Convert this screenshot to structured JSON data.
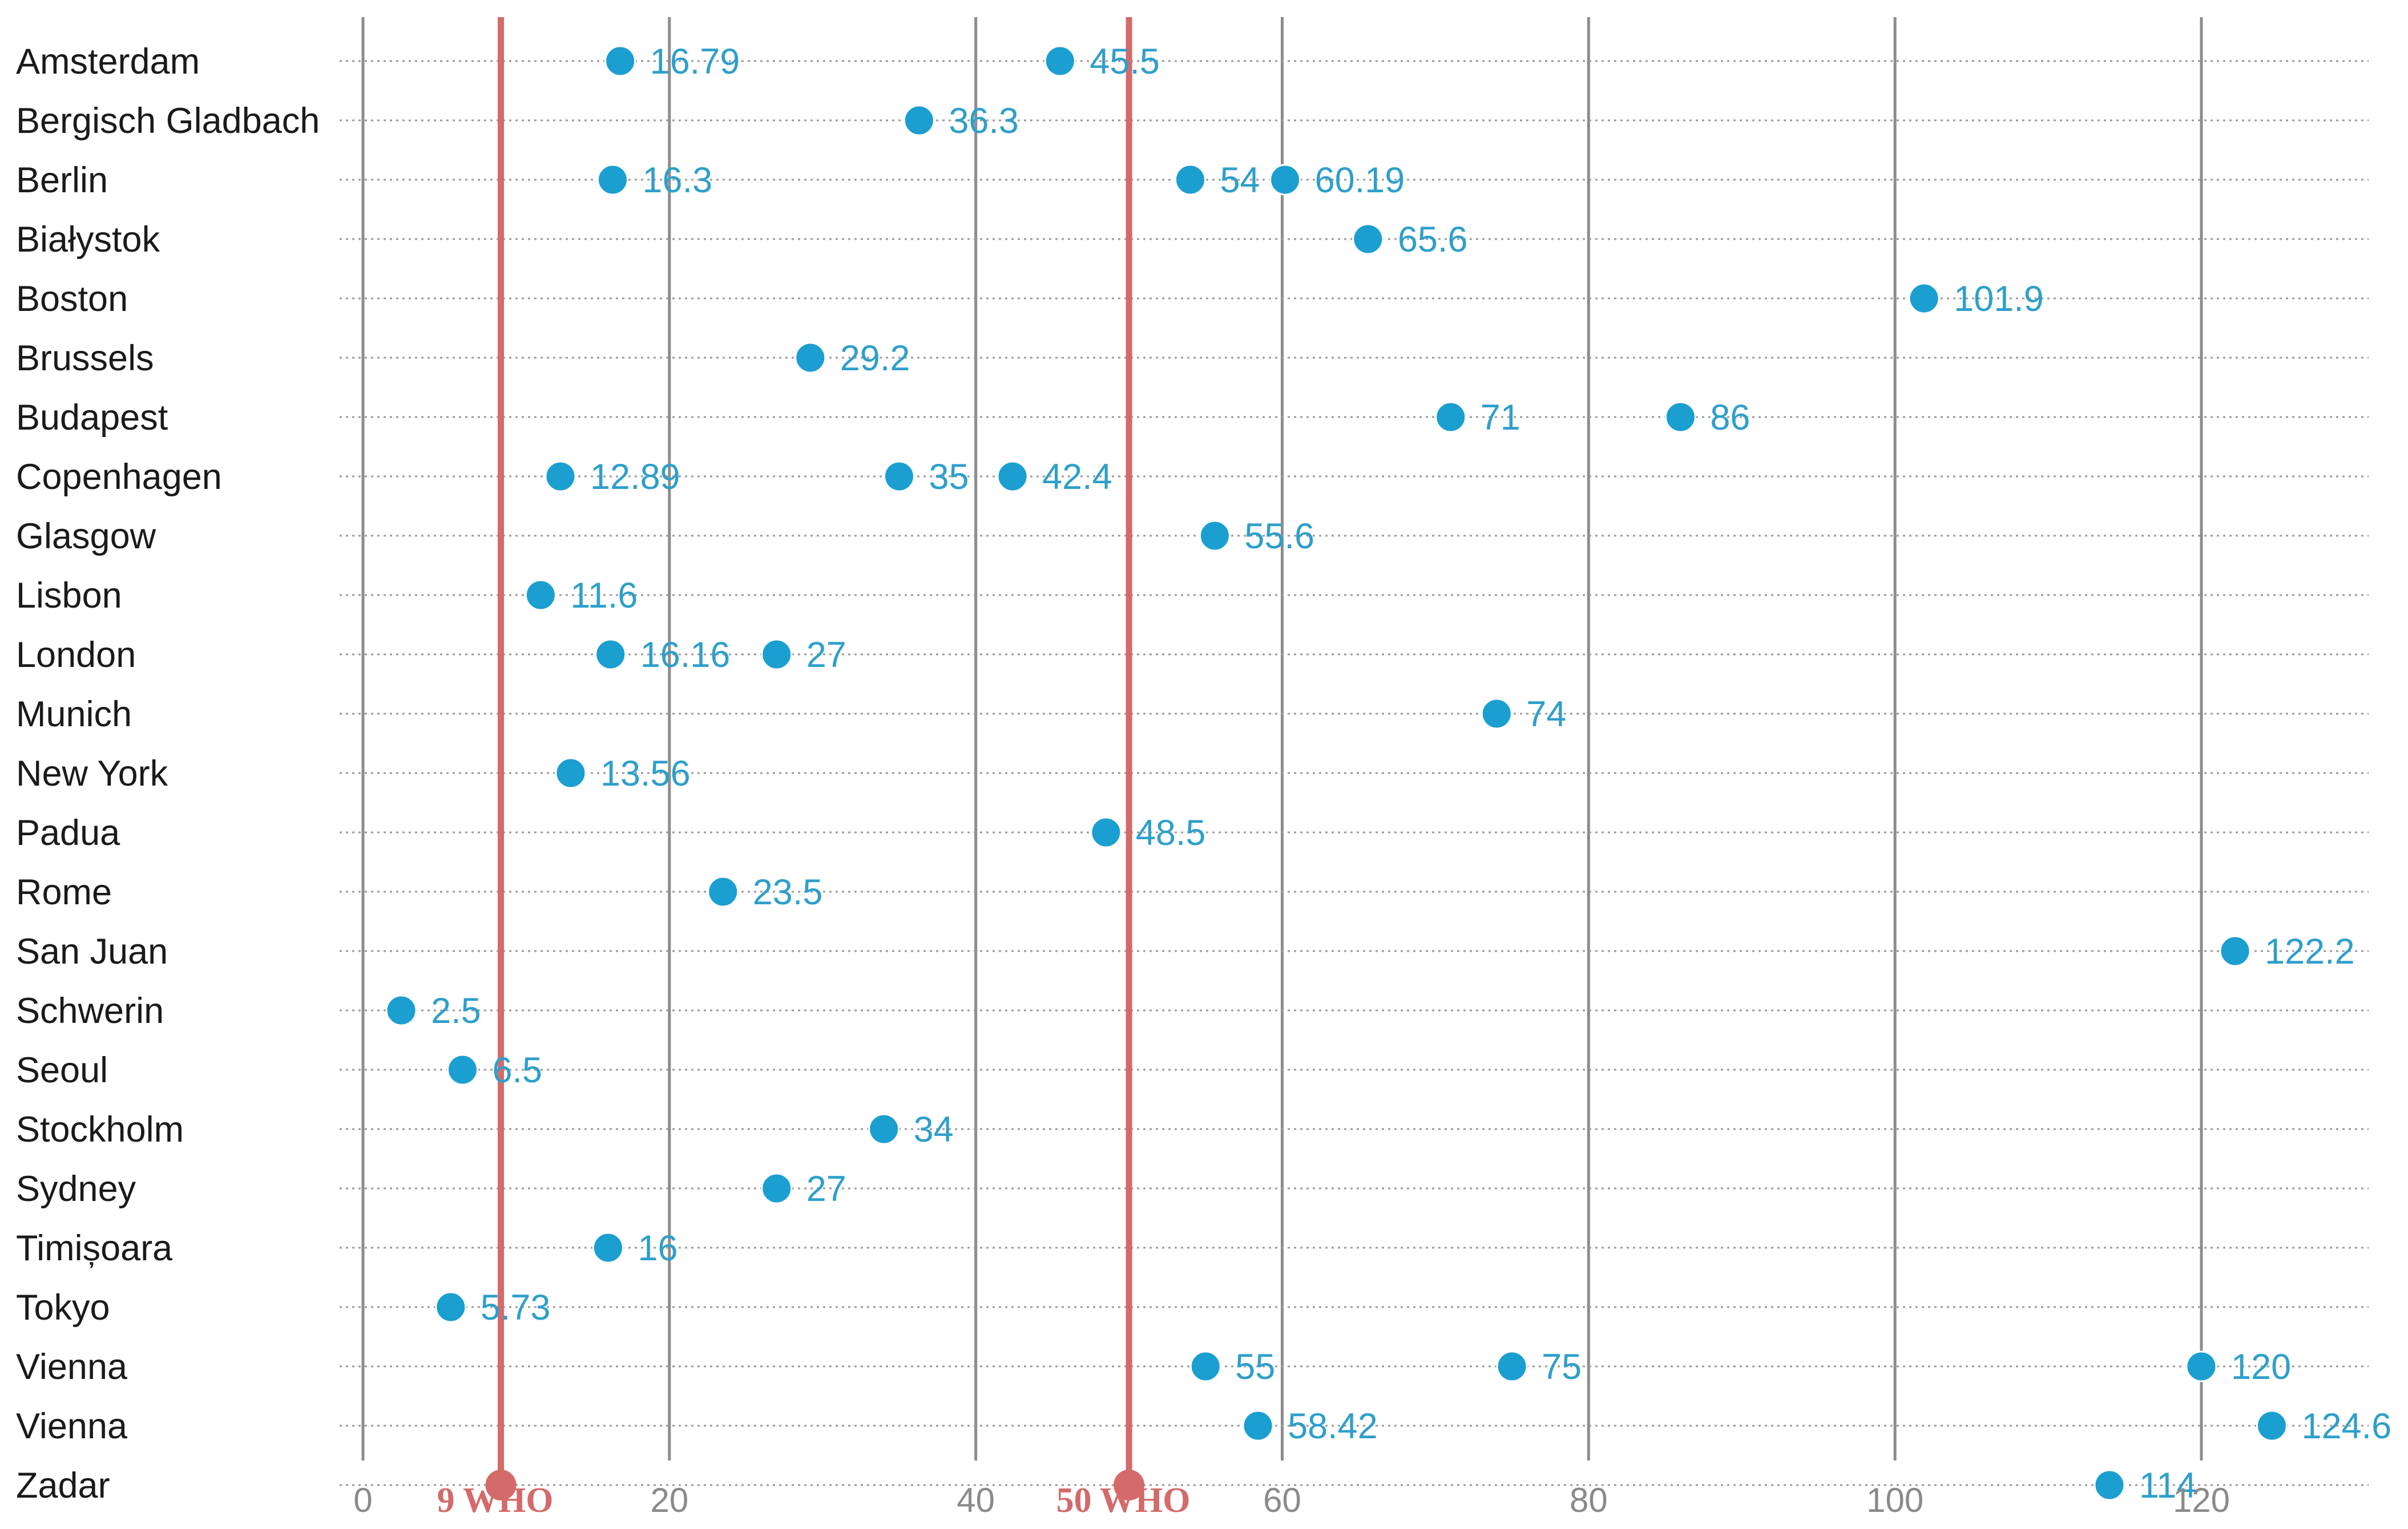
{
  "colors": {
    "dot": "#1a9fd0",
    "value_text": "#2e9fcb",
    "reference": "#d46a6a",
    "grid": "#8c8c8c",
    "row_line": "#9a9a9a",
    "city_text": "#1a1a1a",
    "tick_text": "#8a8a8a"
  },
  "chart_data": {
    "type": "scatter",
    "title": "",
    "xlabel": "",
    "ylabel": "",
    "xlim": [
      0,
      130
    ],
    "x_ticks": [
      0,
      20,
      40,
      60,
      80,
      100,
      120
    ],
    "x_tick_labels": [
      "0",
      "20",
      "40",
      "60",
      "80",
      "100",
      "120"
    ],
    "grid": true,
    "legend": "none",
    "reference_lines": [
      {
        "x": 9,
        "label": "9 WHO"
      },
      {
        "x": 50,
        "label": "50 WHO"
      }
    ],
    "categories": [
      "Amsterdam",
      "Bergisch Gladbach",
      "Berlin",
      "Białystok",
      "Boston",
      "Brussels",
      "Budapest",
      "Copenhagen",
      "Glasgow",
      "Lisbon",
      "London",
      "Munich",
      "New York",
      "Padua",
      "Rome",
      "San Juan",
      "Schwerin",
      "Seoul",
      "Stockholm",
      "Sydney",
      "Timișoara",
      "Tokyo",
      "Vienna",
      "Vienna",
      "Zadar"
    ],
    "points": [
      {
        "city": "Amsterdam",
        "values": [
          16.79,
          45.5
        ],
        "labels": [
          "16.79",
          "45.5"
        ]
      },
      {
        "city": "Bergisch Gladbach",
        "values": [
          36.3
        ],
        "labels": [
          "36.3"
        ]
      },
      {
        "city": "Berlin",
        "values": [
          16.3,
          54,
          60.19
        ],
        "labels": [
          "16.3",
          "54",
          "60.19"
        ]
      },
      {
        "city": "Białystok",
        "values": [
          65.6
        ],
        "labels": [
          "65.6"
        ]
      },
      {
        "city": "Boston",
        "values": [
          101.9
        ],
        "labels": [
          "101.9"
        ]
      },
      {
        "city": "Brussels",
        "values": [
          29.2
        ],
        "labels": [
          "29.2"
        ]
      },
      {
        "city": "Budapest",
        "values": [
          71,
          86
        ],
        "labels": [
          "71",
          "86"
        ]
      },
      {
        "city": "Copenhagen",
        "values": [
          12.89,
          35,
          42.4
        ],
        "labels": [
          "12.89",
          "35",
          "42.4"
        ]
      },
      {
        "city": "Glasgow",
        "values": [
          55.6
        ],
        "labels": [
          "55.6"
        ]
      },
      {
        "city": "Lisbon",
        "values": [
          11.6
        ],
        "labels": [
          "11.6"
        ]
      },
      {
        "city": "London",
        "values": [
          16.16,
          27
        ],
        "labels": [
          "16.16",
          "27"
        ]
      },
      {
        "city": "Munich",
        "values": [
          74
        ],
        "labels": [
          "74"
        ]
      },
      {
        "city": "New York",
        "values": [
          13.56
        ],
        "labels": [
          "13.56"
        ]
      },
      {
        "city": "Padua",
        "values": [
          48.5
        ],
        "labels": [
          "48.5"
        ]
      },
      {
        "city": "Rome",
        "values": [
          23.5
        ],
        "labels": [
          "23.5"
        ]
      },
      {
        "city": "San Juan",
        "values": [
          122.2
        ],
        "labels": [
          "122.2"
        ]
      },
      {
        "city": "Schwerin",
        "values": [
          2.5
        ],
        "labels": [
          "2.5"
        ]
      },
      {
        "city": "Seoul",
        "values": [
          6.5
        ],
        "labels": [
          "6.5"
        ]
      },
      {
        "city": "Stockholm",
        "values": [
          34
        ],
        "labels": [
          "34"
        ]
      },
      {
        "city": "Sydney",
        "values": [
          27
        ],
        "labels": [
          "27"
        ]
      },
      {
        "city": "Timișoara",
        "values": [
          16
        ],
        "labels": [
          "16"
        ]
      },
      {
        "city": "Tokyo",
        "values": [
          5.73
        ],
        "labels": [
          "5.73"
        ]
      },
      {
        "city": "Vienna",
        "values": [
          55,
          75,
          120
        ],
        "labels": [
          "55",
          "75",
          "120"
        ]
      },
      {
        "city": "Vienna",
        "values": [
          58.42,
          124.6
        ],
        "labels": [
          "58.42",
          "124.6"
        ]
      },
      {
        "city": "Zadar",
        "values": [
          114
        ],
        "labels": [
          "114"
        ]
      }
    ]
  }
}
